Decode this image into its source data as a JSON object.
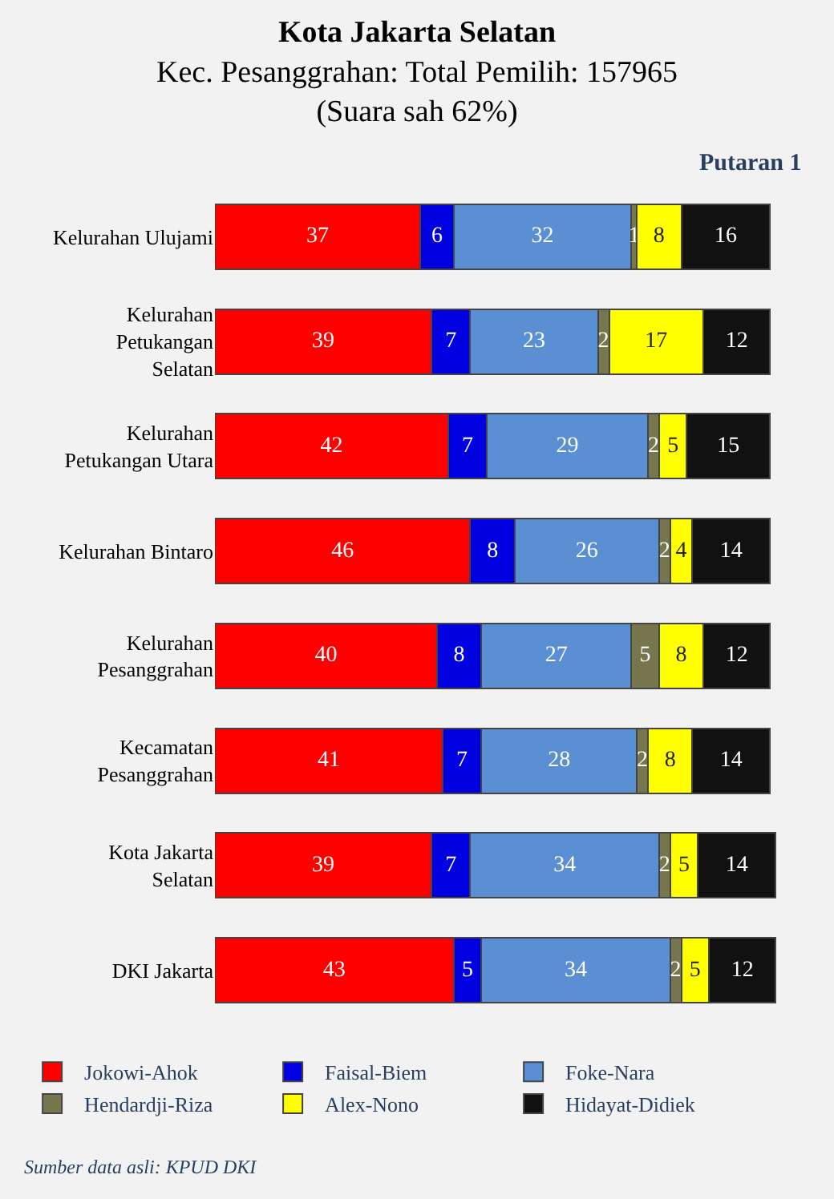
{
  "chart_data": {
    "type": "bar",
    "orientation": "horizontal",
    "stacked": true,
    "data_labels": true,
    "grid": false,
    "legend": "bottom",
    "tick_labels": "y",
    "title": "Kota Jakarta Selatan",
    "subtitle": "Kec. Pesanggrahan: Total Pemilih: 157965\n(Suara sah 62%)",
    "annotations": [
      "Putaran 1",
      "Sumber data asli: KPUD DKI"
    ],
    "categories": [
      "Kelurahan Ulujami",
      "Kelurahan\nPetukangan\nSelatan",
      "Kelurahan\nPetukangan Utara",
      "Kelurahan Bintaro",
      "Kelurahan\nPesanggrahan",
      "Kecamatan\nPesanggrahan",
      "Kota Jakarta\nSelatan",
      "DKI Jakarta"
    ],
    "series": [
      {
        "name": "Jokowi-Ahok",
        "color": "#ff0000",
        "values": [
          37,
          39,
          42,
          46,
          40,
          41,
          39,
          43
        ]
      },
      {
        "name": "Faisal-Biem",
        "color": "#0000e0",
        "values": [
          6,
          7,
          7,
          8,
          8,
          7,
          7,
          5
        ]
      },
      {
        "name": "Foke-Nara",
        "color": "#5b8fd4",
        "values": [
          32,
          23,
          29,
          26,
          27,
          28,
          34,
          34
        ]
      },
      {
        "name": "Hendardji-Riza",
        "color": "#77774f",
        "values": [
          1,
          2,
          2,
          2,
          5,
          2,
          2,
          2
        ]
      },
      {
        "name": "Alex-Nono",
        "color": "#ffff00",
        "values": [
          8,
          17,
          5,
          4,
          8,
          8,
          5,
          5
        ]
      },
      {
        "name": "Hidayat-Didiek",
        "color": "#111111",
        "values": [
          16,
          12,
          15,
          14,
          12,
          14,
          14,
          12
        ]
      }
    ]
  }
}
